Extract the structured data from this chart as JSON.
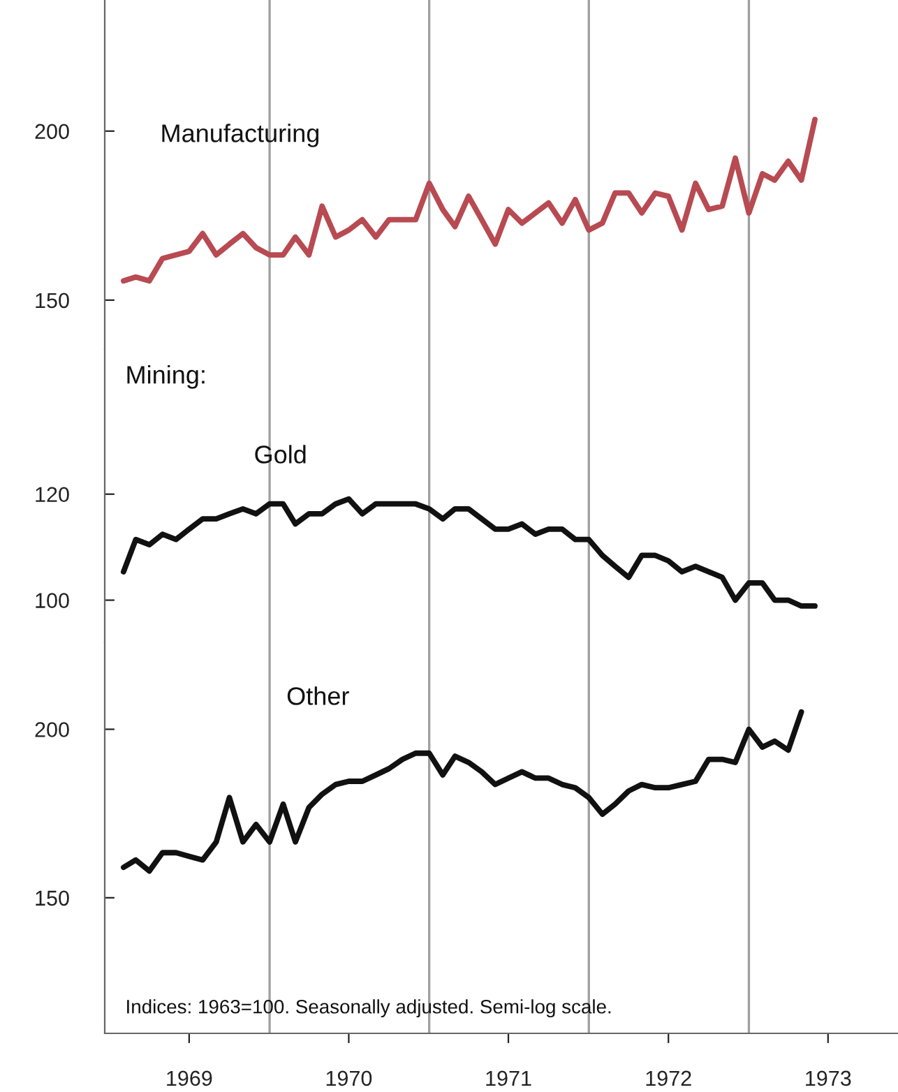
{
  "chart_data": [
    {
      "type": "line",
      "title": "Manufacturing",
      "log": true,
      "tick_labels": "y",
      "x": [
        "1969-02",
        "1969-03",
        "1969-04",
        "1969-05",
        "1969-06",
        "1969-07",
        "1969-08",
        "1969-09",
        "1969-10",
        "1969-11",
        "1969-12",
        "1970-01",
        "1970-02",
        "1970-03",
        "1970-04",
        "1970-05",
        "1970-06",
        "1970-07",
        "1970-08",
        "1970-09",
        "1970-10",
        "1970-11",
        "1970-12",
        "1971-01",
        "1971-02",
        "1971-03",
        "1971-04",
        "1971-05",
        "1971-06",
        "1971-07",
        "1971-08",
        "1971-09",
        "1971-10",
        "1971-11",
        "1971-12",
        "1972-01",
        "1972-02",
        "1972-03",
        "1972-04",
        "1972-05",
        "1972-06",
        "1972-07",
        "1972-08",
        "1972-09",
        "1972-10",
        "1972-11",
        "1972-12",
        "1973-01",
        "1973-02",
        "1973-03",
        "1973-04",
        "1973-05",
        "1973-06"
      ],
      "series": [
        {
          "color": "#b84a52",
          "values": [
            155,
            156,
            155,
            161,
            162,
            163,
            168,
            162,
            165,
            168,
            164,
            162,
            162,
            167,
            162,
            176,
            167,
            169,
            172,
            167,
            172,
            172,
            172,
            183,
            175,
            170,
            179,
            172,
            165,
            175,
            171,
            174,
            177,
            171,
            178,
            169,
            171,
            180,
            180,
            174,
            180,
            179,
            169,
            183,
            175,
            176,
            191,
            174,
            186,
            184,
            190,
            184,
            204
          ]
        }
      ],
      "xlim": [
        "1968-12-20",
        "1973-12-08"
      ],
      "ylim": [
        138,
        250
      ],
      "yticks": [
        150,
        200
      ],
      "ref_lines": [
        {
          "axis": "x",
          "value": "1970-01",
          "color": "#a0a0a0"
        },
        {
          "axis": "x",
          "value": "1971-01",
          "color": "#a0a0a0"
        },
        {
          "axis": "x",
          "value": "1972-01",
          "color": "#a0a0a0"
        },
        {
          "axis": "x",
          "value": "1973-01",
          "color": "#a0a0a0"
        }
      ]
    },
    {
      "type": "line",
      "title": "Gold",
      "subtitle": "Mining:",
      "log": true,
      "tick_labels": "y",
      "x": [
        "1969-02",
        "1969-03",
        "1969-04",
        "1969-05",
        "1969-06",
        "1969-07",
        "1969-08",
        "1969-09",
        "1969-10",
        "1969-11",
        "1969-12",
        "1970-01",
        "1970-02",
        "1970-03",
        "1970-04",
        "1970-05",
        "1970-06",
        "1970-07",
        "1970-08",
        "1970-09",
        "1970-10",
        "1970-11",
        "1970-12",
        "1971-01",
        "1971-02",
        "1971-03",
        "1971-04",
        "1971-05",
        "1971-06",
        "1971-07",
        "1971-08",
        "1971-09",
        "1971-10",
        "1971-11",
        "1971-12",
        "1972-01",
        "1972-02",
        "1972-03",
        "1972-04",
        "1972-05",
        "1972-06",
        "1972-07",
        "1972-08",
        "1972-09",
        "1972-10",
        "1972-11",
        "1972-12",
        "1973-01",
        "1973-02",
        "1973-03",
        "1973-04",
        "1973-05",
        "1973-06"
      ],
      "series": [
        {
          "color": "#111111",
          "values": [
            105,
            111,
            110,
            112,
            111,
            113,
            115,
            115,
            116,
            117,
            116,
            118,
            118,
            114,
            116,
            116,
            118,
            119,
            116,
            118,
            118,
            118,
            118,
            117,
            115,
            117,
            117,
            115,
            113,
            113,
            114,
            112,
            113,
            113,
            111,
            111,
            108,
            106,
            104,
            108,
            108,
            107,
            105,
            106,
            105,
            104,
            100,
            103,
            103,
            100,
            100,
            99,
            99
          ]
        }
      ],
      "xlim": [
        "1968-12-20",
        "1973-12-08"
      ],
      "ylim": [
        93,
        154
      ],
      "yticks": [
        100,
        120
      ],
      "ref_lines": [
        {
          "axis": "x",
          "value": "1970-01",
          "color": "#a0a0a0"
        },
        {
          "axis": "x",
          "value": "1971-01",
          "color": "#a0a0a0"
        },
        {
          "axis": "x",
          "value": "1972-01",
          "color": "#a0a0a0"
        },
        {
          "axis": "x",
          "value": "1973-01",
          "color": "#a0a0a0"
        }
      ]
    },
    {
      "type": "line",
      "title": "Other",
      "log": true,
      "x": [
        "1969-02",
        "1969-03",
        "1969-04",
        "1969-05",
        "1969-06",
        "1969-07",
        "1969-08",
        "1969-09",
        "1969-10",
        "1969-11",
        "1969-12",
        "1970-01",
        "1970-02",
        "1970-03",
        "1970-04",
        "1970-05",
        "1970-06",
        "1970-07",
        "1970-08",
        "1970-09",
        "1970-10",
        "1970-11",
        "1970-12",
        "1971-01",
        "1971-02",
        "1971-03",
        "1971-04",
        "1971-05",
        "1971-06",
        "1971-07",
        "1971-08",
        "1971-09",
        "1971-10",
        "1971-11",
        "1971-12",
        "1972-01",
        "1972-02",
        "1972-03",
        "1972-04",
        "1972-05",
        "1972-06",
        "1972-07",
        "1972-08",
        "1972-09",
        "1972-10",
        "1972-11",
        "1972-12",
        "1973-01",
        "1973-02",
        "1973-03",
        "1973-04",
        "1973-05"
      ],
      "series": [
        {
          "color": "#111111",
          "values": [
            158,
            160,
            157,
            162,
            162,
            161,
            160,
            165,
            178,
            165,
            170,
            165,
            176,
            165,
            175,
            179,
            182,
            183,
            183,
            185,
            187,
            190,
            192,
            192,
            185,
            191,
            189,
            186,
            182,
            184,
            186,
            184,
            184,
            182,
            181,
            178,
            173,
            176,
            180,
            182,
            181,
            181,
            182,
            183,
            190,
            190,
            189,
            200,
            194,
            196,
            193,
            206
          ]
        }
      ],
      "xlim": [
        "1968-12-20",
        "1973-12-08"
      ],
      "ylim": [
        119,
        232
      ],
      "yticks": [
        150,
        200
      ],
      "xticks": [
        {
          "value": "1969-07",
          "label": "1969"
        },
        {
          "value": "1970-07",
          "label": "1970"
        },
        {
          "value": "1971-07",
          "label": "1971"
        },
        {
          "value": "1972-07",
          "label": "1972"
        },
        {
          "value": "1973-07",
          "label": "1973"
        }
      ],
      "ref_lines": [
        {
          "axis": "x",
          "value": "1970-01",
          "color": "#a0a0a0"
        },
        {
          "axis": "x",
          "value": "1971-01",
          "color": "#a0a0a0"
        },
        {
          "axis": "x",
          "value": "1972-01",
          "color": "#a0a0a0"
        },
        {
          "axis": "x",
          "value": "1973-01",
          "color": "#a0a0a0"
        }
      ],
      "annotations": [
        "Indices: 1963=100. Seasonally adjusted. Semi-log scale."
      ]
    }
  ]
}
